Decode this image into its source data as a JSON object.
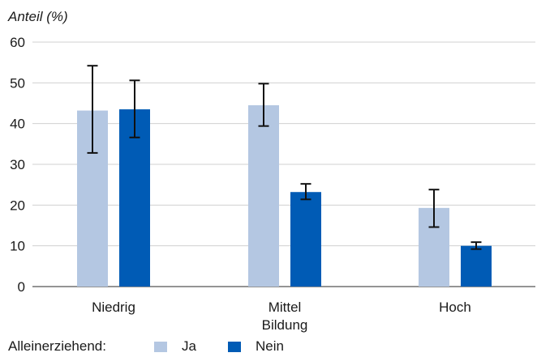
{
  "chart_data": {
    "type": "bar",
    "ylabel": "Anteil (%)",
    "xlabel": "Bildung",
    "ylim": [
      0,
      60
    ],
    "yticks": [
      0,
      10,
      20,
      30,
      40,
      50,
      60
    ],
    "grid": true,
    "legend_title": "Alleinerziehend:",
    "legend_position": "bottom-left",
    "categories": [
      "Niedrig",
      "Mittel",
      "Hoch"
    ],
    "series": [
      {
        "name": "Ja",
        "color": "#b4c7e2",
        "values": [
          43.2,
          44.5,
          19.3
        ],
        "err_low": [
          32.8,
          39.4,
          14.6
        ],
        "err_high": [
          54.2,
          49.8,
          23.8
        ]
      },
      {
        "name": "Nein",
        "color": "#005bb5",
        "values": [
          43.5,
          23.2,
          10.0
        ],
        "err_low": [
          36.6,
          21.4,
          9.2
        ],
        "err_high": [
          50.6,
          25.2,
          10.9
        ]
      }
    ]
  }
}
